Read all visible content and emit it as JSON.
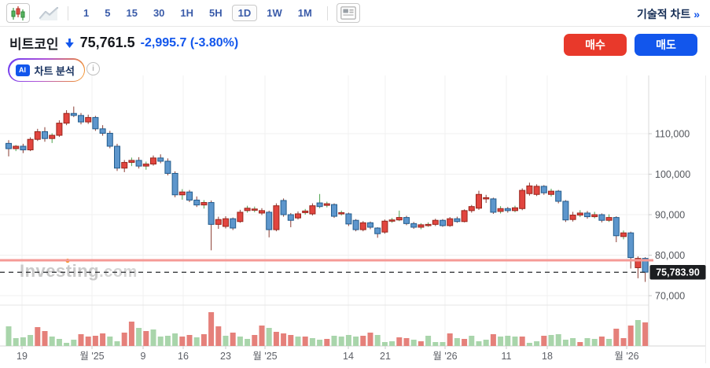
{
  "toolbar": {
    "timeframes": [
      "1",
      "5",
      "15",
      "30",
      "1H",
      "5H",
      "1D",
      "1W",
      "1M"
    ],
    "selected_timeframe": "1D",
    "technical_chart_link": "기술적 차트",
    "technical_chart_arrow": "»"
  },
  "quote": {
    "name": "비트코인",
    "price": "75,761.5",
    "change": "-2,995.7",
    "change_percent": "(-3.80%)",
    "direction": "down"
  },
  "actions": {
    "buy_label": "매수",
    "sell_label": "매도"
  },
  "ai_analysis": {
    "badge": "AI",
    "label": "차트 분석",
    "info_glyph": "i"
  },
  "watermark": {
    "text": "Investing",
    "suffix": ".com"
  },
  "colors": {
    "accent_blue": "#1256ec",
    "buy_red": "#e8392b",
    "up_fill": "#e1453f",
    "up_stroke": "#99251c",
    "down_fill": "#5d96cc",
    "down_stroke": "#235c8d",
    "wick_down": "#8a3c33",
    "wick_up": "#4ba24b",
    "vol_green": "#a9d5ab",
    "vol_red": "#e5807a",
    "support_line_pink": "#f59a96",
    "price_badge_bg": "#1c1e21",
    "grid": "#f0f0f0"
  },
  "chart_data": {
    "type": "candlestick",
    "symbol": "비트코인",
    "interval": "1D",
    "legend_position": "none",
    "grid": true,
    "y_axis": {
      "ticks": [
        110000,
        100000,
        90000,
        80000,
        70000
      ],
      "labels": [
        "110,000",
        "100,000",
        "90,000",
        "80,000",
        "70,000"
      ],
      "range": [
        67000,
        118000
      ]
    },
    "x_axis": {
      "ticks": [
        {
          "label": "19",
          "px": 28
        },
        {
          "label": "월 '25",
          "px": 117
        },
        {
          "label": "9",
          "px": 182
        },
        {
          "label": "16",
          "px": 233
        },
        {
          "label": "23",
          "px": 287
        },
        {
          "label": "월 '25",
          "px": 337
        },
        {
          "label": "14",
          "px": 443
        },
        {
          "label": "21",
          "px": 490
        },
        {
          "label": "월 '26",
          "px": 566
        },
        {
          "label": "11",
          "px": 644
        },
        {
          "label": "18",
          "px": 696
        },
        {
          "label": "월 '26",
          "px": 797
        }
      ]
    },
    "current_price": 75783.9,
    "current_price_label": "75,783.90",
    "support_line_value": 78740,
    "candles_ohlc": [
      [
        107600,
        108400,
        104400,
        106300
      ],
      [
        106300,
        107200,
        105700,
        106900
      ],
      [
        106900,
        107500,
        105200,
        106000
      ],
      [
        106000,
        109100,
        105700,
        108600
      ],
      [
        108600,
        111200,
        108200,
        110500
      ],
      [
        110500,
        111600,
        108000,
        108800
      ],
      [
        108800,
        110100,
        107700,
        109600
      ],
      [
        109600,
        113300,
        109200,
        112600
      ],
      [
        112600,
        115800,
        112100,
        115000
      ],
      [
        115000,
        116700,
        114100,
        114500
      ],
      [
        114500,
        115100,
        112300,
        112900
      ],
      [
        112900,
        114700,
        112400,
        114000
      ],
      [
        114000,
        114400,
        110700,
        111200
      ],
      [
        111200,
        112100,
        109500,
        110100
      ],
      [
        110100,
        110700,
        106400,
        106900
      ],
      [
        106900,
        107500,
        100800,
        101500
      ],
      [
        101500,
        103500,
        100500,
        102900
      ],
      [
        102900,
        104100,
        102000,
        103400
      ],
      [
        103400,
        104200,
        101400,
        102000
      ],
      [
        102000,
        103100,
        101100,
        102500
      ],
      [
        102500,
        104600,
        102100,
        104000
      ],
      [
        104000,
        104900,
        102700,
        103200
      ],
      [
        103200,
        103900,
        99700,
        100200
      ],
      [
        100200,
        100700,
        94300,
        94900
      ],
      [
        94900,
        96300,
        93700,
        95600
      ],
      [
        95600,
        96100,
        93100,
        93600
      ],
      [
        93600,
        94500,
        91900,
        92400
      ],
      [
        92400,
        93600,
        91500,
        93000
      ],
      [
        93000,
        93500,
        81200,
        87600
      ],
      [
        87600,
        89500,
        86500,
        88800
      ],
      [
        87100,
        89600,
        86600,
        89000
      ],
      [
        89000,
        89300,
        86200,
        86700
      ],
      [
        88300,
        91200,
        88000,
        90600
      ],
      [
        91000,
        92200,
        90500,
        91600
      ],
      [
        91200,
        92000,
        90600,
        91400
      ],
      [
        90400,
        91600,
        89900,
        91000
      ],
      [
        90600,
        91000,
        84400,
        86300
      ],
      [
        86300,
        92800,
        85900,
        92200
      ],
      [
        93500,
        94000,
        89500,
        90000
      ],
      [
        90000,
        90400,
        86900,
        88600
      ],
      [
        89200,
        90800,
        88800,
        90200
      ],
      [
        90500,
        91400,
        90000,
        90900
      ],
      [
        90200,
        92800,
        89800,
        92200
      ],
      [
        92900,
        95100,
        91600,
        92000
      ],
      [
        92300,
        93200,
        91800,
        92700
      ],
      [
        92500,
        92800,
        89200,
        89600
      ],
      [
        90300,
        91000,
        89800,
        90500
      ],
      [
        90200,
        90500,
        87200,
        87700
      ],
      [
        88600,
        88900,
        85900,
        86300
      ],
      [
        86300,
        88400,
        85900,
        88000
      ],
      [
        88000,
        88300,
        86400,
        86900
      ],
      [
        86700,
        86900,
        84300,
        85300
      ],
      [
        85700,
        88800,
        85300,
        88400
      ],
      [
        88400,
        89200,
        88000,
        88700
      ],
      [
        88700,
        91000,
        88400,
        89300
      ],
      [
        89300,
        89700,
        87400,
        87800
      ],
      [
        87800,
        88200,
        86500,
        86900
      ],
      [
        86900,
        87900,
        86400,
        87500
      ],
      [
        87500,
        88100,
        87000,
        87600
      ],
      [
        87600,
        89000,
        87200,
        88600
      ],
      [
        88600,
        88900,
        87000,
        87300
      ],
      [
        87300,
        89400,
        87000,
        89000
      ],
      [
        89000,
        89500,
        88000,
        88300
      ],
      [
        88300,
        91300,
        88100,
        91000
      ],
      [
        91000,
        92400,
        90500,
        92000
      ],
      [
        91600,
        95900,
        91200,
        95000
      ],
      [
        93900,
        94900,
        92900,
        94200
      ],
      [
        93900,
        94200,
        90200,
        90600
      ],
      [
        90800,
        92100,
        90300,
        91500
      ],
      [
        91500,
        91900,
        90500,
        91000
      ],
      [
        91000,
        92200,
        90600,
        91700
      ],
      [
        91500,
        96500,
        91100,
        96000
      ],
      [
        95200,
        97900,
        94700,
        97100
      ],
      [
        95000,
        97500,
        94600,
        97000
      ],
      [
        97000,
        97300,
        94900,
        95400
      ],
      [
        95000,
        96400,
        94500,
        95800
      ],
      [
        95800,
        96100,
        92800,
        93300
      ],
      [
        93300,
        93600,
        88200,
        88700
      ],
      [
        88800,
        90700,
        88300,
        89900
      ],
      [
        89900,
        91100,
        89400,
        90400
      ],
      [
        90400,
        90900,
        89000,
        89500
      ],
      [
        89500,
        90700,
        89100,
        90000
      ],
      [
        90000,
        90300,
        88100,
        88600
      ],
      [
        88600,
        90100,
        88200,
        89300
      ],
      [
        89300,
        89600,
        83200,
        84800
      ],
      [
        84600,
        86100,
        83900,
        85500
      ],
      [
        85500,
        85800,
        76700,
        79400
      ],
      [
        76900,
        79700,
        74300,
        79200
      ],
      [
        79200,
        79500,
        73400,
        75800
      ]
    ],
    "volume_bars": [
      [
        25,
        "g"
      ],
      [
        10,
        "g"
      ],
      [
        11,
        "g"
      ],
      [
        14,
        "g"
      ],
      [
        24,
        "r"
      ],
      [
        19,
        "r"
      ],
      [
        12,
        "g"
      ],
      [
        9,
        "g"
      ],
      [
        4,
        "g"
      ],
      [
        8,
        "g"
      ],
      [
        15,
        "r"
      ],
      [
        12,
        "r"
      ],
      [
        13,
        "r"
      ],
      [
        16,
        "r"
      ],
      [
        12,
        "g"
      ],
      [
        6,
        "g"
      ],
      [
        17,
        "r"
      ],
      [
        31,
        "r"
      ],
      [
        23,
        "g"
      ],
      [
        19,
        "r"
      ],
      [
        21,
        "g"
      ],
      [
        12,
        "g"
      ],
      [
        13,
        "g"
      ],
      [
        16,
        "g"
      ],
      [
        12,
        "r"
      ],
      [
        14,
        "r"
      ],
      [
        11,
        "g"
      ],
      [
        15,
        "r"
      ],
      [
        43,
        "r"
      ],
      [
        25,
        "r"
      ],
      [
        13,
        "g"
      ],
      [
        17,
        "r"
      ],
      [
        12,
        "g"
      ],
      [
        9,
        "g"
      ],
      [
        14,
        "r"
      ],
      [
        26,
        "r"
      ],
      [
        23,
        "g"
      ],
      [
        18,
        "r"
      ],
      [
        16,
        "r"
      ],
      [
        14,
        "r"
      ],
      [
        12,
        "g"
      ],
      [
        12,
        "r"
      ],
      [
        10,
        "g"
      ],
      [
        8,
        "g"
      ],
      [
        9,
        "r"
      ],
      [
        13,
        "g"
      ],
      [
        12,
        "g"
      ],
      [
        14,
        "g"
      ],
      [
        12,
        "g"
      ],
      [
        13,
        "r"
      ],
      [
        17,
        "r"
      ],
      [
        14,
        "g"
      ],
      [
        5,
        "g"
      ],
      [
        6,
        "g"
      ],
      [
        11,
        "r"
      ],
      [
        10,
        "r"
      ],
      [
        8,
        "g"
      ],
      [
        6,
        "r"
      ],
      [
        13,
        "g"
      ],
      [
        5,
        "g"
      ],
      [
        5,
        "g"
      ],
      [
        16,
        "r"
      ],
      [
        10,
        "g"
      ],
      [
        9,
        "r"
      ],
      [
        13,
        "g"
      ],
      [
        6,
        "g"
      ],
      [
        8,
        "g"
      ],
      [
        15,
        "r"
      ],
      [
        12,
        "g"
      ],
      [
        13,
        "g"
      ],
      [
        12,
        "g"
      ],
      [
        12,
        "r"
      ],
      [
        4,
        "g"
      ],
      [
        6,
        "g"
      ],
      [
        13,
        "r"
      ],
      [
        14,
        "g"
      ],
      [
        15,
        "g"
      ],
      [
        8,
        "g"
      ],
      [
        10,
        "g"
      ],
      [
        5,
        "r"
      ],
      [
        10,
        "g"
      ],
      [
        9,
        "g"
      ],
      [
        12,
        "r"
      ],
      [
        9,
        "g"
      ],
      [
        22,
        "r"
      ],
      [
        10,
        "r"
      ],
      [
        26,
        "r"
      ],
      [
        33,
        "g"
      ],
      [
        30,
        "r"
      ]
    ]
  }
}
